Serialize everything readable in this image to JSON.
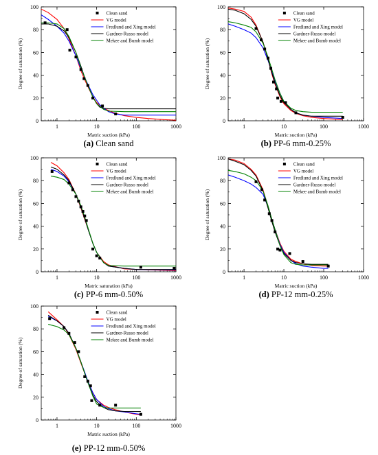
{
  "colors": {
    "clean_sand": "#000000",
    "vg": "#ff0000",
    "fredlund_xing": "#0000ff",
    "gardner_russo": "#000000",
    "mekee_bumb": "#008000"
  },
  "chart_data": [
    {
      "type": "line",
      "panel": "a",
      "caption_letter": "(a)",
      "caption_text": " Clean sand",
      "xlabel": "Matric suction (kPa)",
      "ylabel": "Degree of saturation (%)",
      "x_scale": "log",
      "xlim": [
        0.4,
        1000
      ],
      "ylim": [
        0,
        100
      ],
      "x_ticks": [
        1,
        10,
        100,
        1000
      ],
      "y_ticks": [
        0,
        20,
        40,
        60,
        80,
        100
      ],
      "legend_position": "top-right",
      "points": {
        "name": "Clean sand",
        "x": [
          0.5,
          1.8,
          2.1,
          3.0,
          4.0,
          4.8,
          6.0,
          8.0,
          14,
          30
        ],
        "y": [
          86,
          80,
          62,
          56,
          45,
          37,
          31,
          20,
          13,
          6
        ]
      },
      "series": [
        {
          "name": "VG model",
          "key": "vg",
          "x": [
            0.4,
            0.6,
            1,
            1.5,
            2,
            3,
            4,
            5,
            6,
            8,
            10,
            15,
            20,
            30,
            50,
            100,
            200,
            500,
            1000
          ],
          "y": [
            98,
            95,
            89,
            81,
            72,
            57,
            44,
            36,
            30,
            21,
            16,
            11,
            9,
            6.5,
            4.5,
            3,
            2,
            1,
            0.5
          ]
        },
        {
          "name": "Fredlund and Xing model",
          "key": "fredlund_xing",
          "x": [
            0.4,
            0.6,
            1,
            1.5,
            2,
            3,
            4,
            5,
            6,
            8,
            10,
            12,
            15,
            20,
            30,
            50,
            100,
            1000
          ],
          "y": [
            93,
            89,
            83,
            77,
            70,
            57,
            46,
            38,
            32,
            23,
            18,
            14,
            11,
            8,
            6,
            5,
            5,
            5
          ]
        },
        {
          "name": "Gardner-Russo model",
          "key": "gardner_russo",
          "x": [
            0.4,
            0.6,
            1,
            1.5,
            2,
            3,
            4,
            5,
            6,
            8,
            10,
            12,
            15,
            20,
            50,
            100,
            1000
          ],
          "y": [
            85,
            85,
            83,
            79,
            73,
            60,
            48,
            38,
            31,
            21,
            15,
            12,
            11,
            10.5,
            10.5,
            10.5,
            10.5
          ]
        },
        {
          "name": "Mekee and Bumb model",
          "key": "mekee_bumb",
          "x": [
            0.4,
            0.6,
            1,
            1.5,
            2,
            3,
            4,
            5,
            6,
            8,
            10,
            15,
            20,
            50,
            100,
            1000
          ],
          "y": [
            86,
            86,
            85,
            81,
            74,
            60,
            47,
            38,
            31,
            21,
            15,
            10,
            8.5,
            8,
            8,
            8
          ]
        }
      ]
    },
    {
      "type": "line",
      "panel": "b",
      "caption_letter": "(b)",
      "caption_text": " PP-6 mm-0.25%",
      "xlabel": "Matric suction (kPa)",
      "ylabel": "Degree of saturation (%)",
      "x_scale": "log",
      "xlim": [
        0.4,
        1000
      ],
      "ylim": [
        0,
        100
      ],
      "x_ticks": [
        1,
        10,
        100,
        1000
      ],
      "y_ticks": [
        0,
        20,
        40,
        60,
        80,
        100
      ],
      "legend_position": "top-right",
      "points": {
        "name": "Clean sand",
        "x": [
          2.0,
          2.7,
          3.3,
          4.0,
          4.7,
          5.5,
          6.5,
          7.0,
          8.5,
          11,
          20,
          300
        ],
        "y": [
          81,
          71,
          63,
          55,
          46,
          34,
          28,
          20,
          17,
          16,
          7,
          3
        ]
      },
      "series": [
        {
          "name": "VG model",
          "key": "vg",
          "x": [
            0.4,
            0.6,
            1,
            1.5,
            2,
            3,
            4,
            5,
            6,
            8,
            10,
            15,
            20,
            30,
            50,
            100,
            300
          ],
          "y": [
            99,
            98,
            96,
            91,
            84,
            69,
            54,
            41,
            32,
            21,
            15,
            9,
            6.5,
            4.5,
            3,
            2,
            1
          ]
        },
        {
          "name": "Fredlund and Xing model",
          "key": "fredlund_xing",
          "x": [
            0.4,
            0.6,
            1,
            1.5,
            2,
            3,
            4,
            5,
            6,
            8,
            10,
            15,
            20,
            30,
            50,
            100,
            300
          ],
          "y": [
            85,
            83,
            80,
            77,
            73,
            64,
            53,
            43,
            35,
            24,
            17,
            10,
            7,
            5,
            4,
            3,
            2
          ]
        },
        {
          "name": "Gardner-Russo model",
          "key": "gardner_russo",
          "x": [
            0.4,
            0.6,
            1,
            1.5,
            2,
            3,
            4,
            5,
            6,
            8,
            10,
            15,
            20,
            30,
            50,
            100,
            300
          ],
          "y": [
            98,
            97,
            94,
            89,
            83,
            69,
            54,
            42,
            33,
            22,
            16,
            10,
            7,
            5,
            4,
            4,
            4
          ]
        },
        {
          "name": "Mekee and Bumb model",
          "key": "mekee_bumb",
          "x": [
            0.4,
            0.6,
            1,
            1.5,
            2,
            3,
            4,
            5,
            6,
            8,
            10,
            15,
            20,
            30,
            50,
            100,
            300
          ],
          "y": [
            87,
            86,
            84,
            82,
            78,
            68,
            56,
            45,
            36,
            24,
            17,
            11,
            9,
            8,
            7.5,
            7.5,
            7.5
          ]
        }
      ]
    },
    {
      "type": "line",
      "panel": "c",
      "caption_letter": "(c)",
      "caption_text": " PP-6 mm-0.50%",
      "xlabel": "Matric saturation (kPa)",
      "ylabel": "Degree of saturation (%)",
      "x_scale": "log",
      "xlim": [
        0.4,
        1000
      ],
      "ylim": [
        0,
        100
      ],
      "x_ticks": [
        1,
        10,
        100,
        1000
      ],
      "y_ticks": [
        0,
        20,
        40,
        60,
        80,
        100
      ],
      "legend_position": "top-right",
      "points": {
        "name": "Clean sand",
        "x": [
          0.75,
          2.0,
          2.5,
          3.0,
          3.5,
          4.0,
          4.5,
          5.0,
          5.5,
          8.0,
          10,
          12,
          130,
          900
        ],
        "y": [
          88,
          78,
          72,
          66,
          62,
          57,
          53,
          49,
          45,
          20,
          14,
          12,
          4,
          3
        ]
      },
      "series": [
        {
          "name": "VG model",
          "key": "vg",
          "x": [
            0.7,
            1,
            1.5,
            2,
            3,
            4,
            5,
            6,
            8,
            10,
            15,
            20,
            50,
            100,
            1000
          ],
          "y": [
            96,
            93,
            87,
            81,
            68,
            56,
            46,
            38,
            25,
            17,
            9,
            6,
            2.5,
            2,
            1
          ]
        },
        {
          "name": "Fredlund and Xing model",
          "key": "fredlund_xing",
          "x": [
            0.7,
            1,
            1.5,
            2,
            3,
            4,
            5,
            6,
            8,
            10,
            15,
            20,
            50,
            100,
            1000
          ],
          "y": [
            90,
            88,
            84,
            79,
            68,
            57,
            47,
            38,
            25,
            17,
            8,
            5,
            3,
            2,
            1.5
          ]
        },
        {
          "name": "Gardner-Russo model",
          "key": "gardner_russo",
          "x": [
            0.7,
            1,
            1.5,
            2,
            3,
            4,
            5,
            6,
            8,
            10,
            15,
            20,
            50,
            100,
            1000
          ],
          "y": [
            92,
            90,
            85,
            80,
            68,
            57,
            47,
            38,
            25,
            17,
            8,
            5,
            3,
            2,
            2
          ]
        },
        {
          "name": "Mekee and Bumb model",
          "key": "mekee_bumb",
          "x": [
            0.7,
            1,
            1.5,
            2,
            3,
            4,
            5,
            6,
            8,
            10,
            15,
            20,
            50,
            100,
            1000
          ],
          "y": [
            84,
            83,
            81,
            77,
            68,
            58,
            48,
            39,
            25,
            17,
            8,
            5.5,
            5,
            5,
            5
          ]
        }
      ]
    },
    {
      "type": "line",
      "panel": "d",
      "caption_letter": "(d)",
      "caption_text": " PP-12 mm-0.25%",
      "xlabel": "Matric suction (kPa)",
      "ylabel": "Degree of saturation (%)",
      "x_scale": "log",
      "xlim": [
        0.4,
        1000
      ],
      "ylim": [
        0,
        100
      ],
      "x_ticks": [
        1,
        10,
        100,
        1000
      ],
      "y_ticks": [
        0,
        20,
        40,
        60,
        80,
        100
      ],
      "legend_position": "top-right",
      "points": {
        "name": "Clean sand",
        "x": [
          2.0,
          2.8,
          3.3,
          4.3,
          5.0,
          6.0,
          7.0,
          8.0,
          14,
          30,
          130
        ],
        "y": [
          79,
          72,
          63,
          51,
          45,
          35,
          20,
          19,
          16,
          9,
          5
        ]
      },
      "series": [
        {
          "name": "VG model",
          "key": "vg",
          "x": [
            0.4,
            0.6,
            1,
            1.5,
            2,
            3,
            4,
            5,
            6,
            8,
            10,
            15,
            20,
            30,
            50,
            100,
            130
          ],
          "y": [
            99,
            98,
            95,
            90,
            85,
            72,
            57,
            46,
            37,
            25,
            18,
            11,
            9,
            7,
            5.5,
            5,
            5
          ]
        },
        {
          "name": "Fredlund and Xing model",
          "key": "fredlund_xing",
          "x": [
            0.4,
            0.6,
            1,
            1.5,
            2,
            3,
            4,
            5,
            6,
            8,
            10,
            15,
            20,
            30,
            50,
            100,
            130
          ],
          "y": [
            85,
            83,
            80,
            77,
            74,
            68,
            57,
            46,
            37,
            24,
            17,
            10,
            7,
            5,
            4,
            3,
            3
          ]
        },
        {
          "name": "Gardner-Russo model",
          "key": "gardner_russo",
          "x": [
            0.4,
            0.6,
            1,
            1.5,
            2,
            3,
            4,
            5,
            6,
            8,
            10,
            15,
            20,
            30,
            50,
            100,
            130
          ],
          "y": [
            99,
            97,
            94,
            89,
            84,
            71,
            56,
            44,
            35,
            23,
            16,
            10,
            8,
            7,
            6.5,
            6.5,
            6.5
          ]
        },
        {
          "name": "Mekee and Bumb model",
          "key": "mekee_bumb",
          "x": [
            0.4,
            0.6,
            1,
            1.5,
            2,
            3,
            4,
            5,
            6,
            8,
            10,
            15,
            20,
            30,
            50,
            100,
            130
          ],
          "y": [
            89,
            88,
            86,
            83,
            80,
            71,
            58,
            46,
            37,
            23,
            15,
            8,
            6.5,
            6,
            6,
            6,
            6
          ]
        }
      ]
    },
    {
      "type": "line",
      "panel": "e",
      "caption_letter": "(e)",
      "caption_text": " PP-12 mm-0.50%",
      "xlabel": "Matric suction (kPa)",
      "ylabel": "Degree of saturation (%)",
      "x_scale": "log",
      "xlim": [
        0.4,
        1000
      ],
      "ylim": [
        0,
        100
      ],
      "x_ticks": [
        1,
        10,
        100,
        1000
      ],
      "y_ticks": [
        0,
        20,
        40,
        60,
        80,
        100
      ],
      "legend_position": "top-right",
      "points": {
        "name": "Clean sand",
        "x": [
          0.65,
          1.5,
          2.0,
          2.8,
          3.5,
          5.0,
          6.0,
          7.0,
          7.5,
          12,
          30,
          130
        ],
        "y": [
          89,
          81,
          76,
          68,
          60,
          38,
          34,
          30,
          17,
          13,
          13,
          5
        ]
      },
      "series": [
        {
          "name": "VG model",
          "key": "vg",
          "x": [
            0.6,
            1,
            1.5,
            2,
            3,
            4,
            5,
            6,
            8,
            10,
            15,
            20,
            30,
            50,
            100,
            130
          ],
          "y": [
            95,
            88,
            82,
            75,
            62,
            50,
            41,
            34,
            24,
            18,
            13,
            11,
            9,
            7,
            5,
            4.5
          ]
        },
        {
          "name": "Fredlund and Xing model",
          "key": "fredlund_xing",
          "x": [
            0.6,
            1,
            1.5,
            2,
            3,
            4,
            5,
            6,
            8,
            10,
            15,
            20,
            30,
            50,
            100,
            130
          ],
          "y": [
            91,
            87,
            82,
            76,
            63,
            51,
            42,
            34,
            24,
            18,
            12,
            10,
            8,
            7,
            5.5,
            5
          ]
        },
        {
          "name": "Gardner-Russo model",
          "key": "gardner_russo",
          "x": [
            0.6,
            1,
            1.5,
            2,
            3,
            4,
            5,
            6,
            8,
            10,
            15,
            20,
            30,
            50,
            100,
            130
          ],
          "y": [
            92,
            87,
            82,
            76,
            63,
            51,
            41,
            33,
            22,
            16,
            11,
            9,
            8,
            7.5,
            7.5,
            7.5
          ]
        },
        {
          "name": "Mekee and Bumb model",
          "key": "mekee_bumb",
          "x": [
            0.6,
            1,
            1.5,
            2,
            3,
            4,
            5,
            6,
            8,
            10,
            15,
            20,
            30,
            50,
            100,
            130
          ],
          "y": [
            84,
            82,
            79,
            75,
            63,
            51,
            41,
            33,
            21,
            14,
            11,
            10.5,
            10.5,
            10.5,
            10.5,
            10.5
          ]
        }
      ]
    }
  ]
}
